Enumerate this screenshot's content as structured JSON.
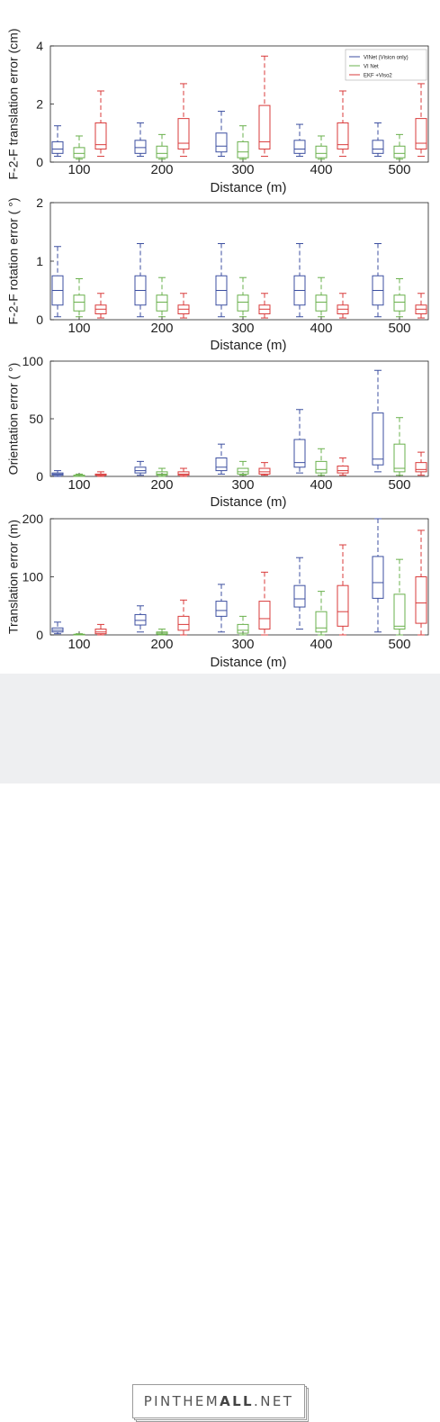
{
  "colors": {
    "vinet": "#3c4fa0",
    "vinet_vi": "#6ab04c",
    "ekf_viso2": "#d93b3b",
    "axis": "#222222",
    "footer_bg": "#eeeff1"
  },
  "legend": {
    "position": "top-right",
    "entries": [
      "VINet (Vision only)",
      "VI Net",
      "EKF +Viso2"
    ]
  },
  "footer": {
    "brand_prefix": "PIN",
    "brand_mid": "THEM",
    "brand_bold": "ALL",
    "brand_suffix": ".NET"
  },
  "chart_data": [
    {
      "type": "box",
      "xlabel": "Distance (m)",
      "ylabel": "F-2-F translation error (cm)",
      "ylim": [
        0,
        4
      ],
      "yticks": [
        "0",
        "2",
        "4"
      ],
      "categories": [
        "100",
        "200",
        "300",
        "400",
        "500"
      ],
      "legend_shown": true,
      "series": [
        {
          "name": "VINet (Vision only)",
          "color_key": "vinet",
          "boxes": [
            {
              "min": 0.2,
              "q1": 0.3,
              "median": 0.45,
              "q3": 0.7,
              "max": 1.25
            },
            {
              "min": 0.2,
              "q1": 0.3,
              "median": 0.5,
              "q3": 0.75,
              "max": 1.35
            },
            {
              "min": 0.2,
              "q1": 0.35,
              "median": 0.55,
              "q3": 1.0,
              "max": 1.75
            },
            {
              "min": 0.2,
              "q1": 0.3,
              "median": 0.45,
              "q3": 0.75,
              "max": 1.3
            },
            {
              "min": 0.2,
              "q1": 0.3,
              "median": 0.45,
              "q3": 0.75,
              "max": 1.35
            }
          ]
        },
        {
          "name": "VI Net",
          "color_key": "vinet_vi",
          "boxes": [
            {
              "min": 0.1,
              "q1": 0.15,
              "median": 0.3,
              "q3": 0.5,
              "max": 0.9
            },
            {
              "min": 0.1,
              "q1": 0.15,
              "median": 0.3,
              "q3": 0.55,
              "max": 0.95
            },
            {
              "min": 0.1,
              "q1": 0.15,
              "median": 0.35,
              "q3": 0.7,
              "max": 1.25
            },
            {
              "min": 0.1,
              "q1": 0.15,
              "median": 0.3,
              "q3": 0.55,
              "max": 0.9
            },
            {
              "min": 0.1,
              "q1": 0.15,
              "median": 0.3,
              "q3": 0.55,
              "max": 0.95
            }
          ]
        },
        {
          "name": "EKF +Viso2",
          "color_key": "ekf_viso2",
          "boxes": [
            {
              "min": 0.2,
              "q1": 0.45,
              "median": 0.6,
              "q3": 1.35,
              "max": 2.45
            },
            {
              "min": 0.2,
              "q1": 0.45,
              "median": 0.65,
              "q3": 1.5,
              "max": 2.7
            },
            {
              "min": 0.2,
              "q1": 0.45,
              "median": 0.7,
              "q3": 1.95,
              "max": 3.65
            },
            {
              "min": 0.2,
              "q1": 0.45,
              "median": 0.6,
              "q3": 1.35,
              "max": 2.45
            },
            {
              "min": 0.2,
              "q1": 0.45,
              "median": 0.65,
              "q3": 1.5,
              "max": 2.7
            }
          ]
        }
      ]
    },
    {
      "type": "box",
      "xlabel": "Distance (m)",
      "ylabel": "F-2-F rotation error ( °)",
      "ylim": [
        0,
        2
      ],
      "yticks": [
        "0",
        "1",
        "2"
      ],
      "categories": [
        "100",
        "200",
        "300",
        "400",
        "500"
      ],
      "legend_shown": false,
      "series": [
        {
          "name": "VINet (Vision only)",
          "color_key": "vinet",
          "boxes": [
            {
              "min": 0.05,
              "q1": 0.25,
              "median": 0.5,
              "q3": 0.75,
              "max": 1.25
            },
            {
              "min": 0.05,
              "q1": 0.25,
              "median": 0.5,
              "q3": 0.75,
              "max": 1.3
            },
            {
              "min": 0.05,
              "q1": 0.25,
              "median": 0.5,
              "q3": 0.75,
              "max": 1.3
            },
            {
              "min": 0.05,
              "q1": 0.25,
              "median": 0.5,
              "q3": 0.75,
              "max": 1.3
            },
            {
              "min": 0.05,
              "q1": 0.25,
              "median": 0.5,
              "q3": 0.75,
              "max": 1.3
            }
          ]
        },
        {
          "name": "VI Net",
          "color_key": "vinet_vi",
          "boxes": [
            {
              "min": 0.05,
              "q1": 0.15,
              "median": 0.3,
              "q3": 0.42,
              "max": 0.7
            },
            {
              "min": 0.05,
              "q1": 0.15,
              "median": 0.3,
              "q3": 0.42,
              "max": 0.72
            },
            {
              "min": 0.05,
              "q1": 0.15,
              "median": 0.3,
              "q3": 0.42,
              "max": 0.72
            },
            {
              "min": 0.05,
              "q1": 0.15,
              "median": 0.3,
              "q3": 0.42,
              "max": 0.72
            },
            {
              "min": 0.05,
              "q1": 0.15,
              "median": 0.3,
              "q3": 0.42,
              "max": 0.7
            }
          ]
        },
        {
          "name": "EKF +Viso2",
          "color_key": "ekf_viso2",
          "boxes": [
            {
              "min": 0.03,
              "q1": 0.1,
              "median": 0.18,
              "q3": 0.25,
              "max": 0.45
            },
            {
              "min": 0.03,
              "q1": 0.1,
              "median": 0.18,
              "q3": 0.25,
              "max": 0.45
            },
            {
              "min": 0.03,
              "q1": 0.1,
              "median": 0.18,
              "q3": 0.25,
              "max": 0.45
            },
            {
              "min": 0.03,
              "q1": 0.1,
              "median": 0.18,
              "q3": 0.25,
              "max": 0.45
            },
            {
              "min": 0.03,
              "q1": 0.1,
              "median": 0.18,
              "q3": 0.25,
              "max": 0.45
            }
          ]
        }
      ]
    },
    {
      "type": "box",
      "xlabel": "Distance (m)",
      "ylabel": "Orientation error ( °)",
      "ylim": [
        0,
        100
      ],
      "yticks": [
        "0",
        "50",
        "100"
      ],
      "categories": [
        "100",
        "200",
        "300",
        "400",
        "500"
      ],
      "legend_shown": false,
      "series": [
        {
          "name": "VINet (Vision only)",
          "color_key": "vinet",
          "boxes": [
            {
              "min": 0,
              "q1": 1,
              "median": 2,
              "q3": 3,
              "max": 5
            },
            {
              "min": 1,
              "q1": 3,
              "median": 5,
              "q3": 8,
              "max": 13
            },
            {
              "min": 2,
              "q1": 5,
              "median": 8,
              "q3": 16,
              "max": 28
            },
            {
              "min": 3,
              "q1": 8,
              "median": 12,
              "q3": 32,
              "max": 58
            },
            {
              "min": 4,
              "q1": 10,
              "median": 15,
              "q3": 55,
              "max": 92
            }
          ]
        },
        {
          "name": "VI Net",
          "color_key": "vinet_vi",
          "boxes": [
            {
              "min": 0,
              "q1": 0,
              "median": 1,
              "q3": 1,
              "max": 2
            },
            {
              "min": 0,
              "q1": 1,
              "median": 2,
              "q3": 4,
              "max": 7
            },
            {
              "min": 1,
              "q1": 2,
              "median": 4,
              "q3": 7,
              "max": 13
            },
            {
              "min": 1,
              "q1": 3,
              "median": 6,
              "q3": 13,
              "max": 24
            },
            {
              "min": 1,
              "q1": 4,
              "median": 7,
              "q3": 28,
              "max": 51
            }
          ]
        },
        {
          "name": "EKF +Viso2",
          "color_key": "ekf_viso2",
          "boxes": [
            {
              "min": 0,
              "q1": 1,
              "median": 1,
              "q3": 2,
              "max": 4
            },
            {
              "min": 0,
              "q1": 1,
              "median": 2,
              "q3": 4,
              "max": 7
            },
            {
              "min": 1,
              "q1": 2,
              "median": 4,
              "q3": 7,
              "max": 12
            },
            {
              "min": 1,
              "q1": 3,
              "median": 5,
              "q3": 9,
              "max": 16
            },
            {
              "min": 1,
              "q1": 4,
              "median": 6,
              "q3": 12,
              "max": 21
            }
          ]
        }
      ]
    },
    {
      "type": "box",
      "xlabel": "Distance (m)",
      "ylabel": "Translation error (m)",
      "ylim": [
        0,
        200
      ],
      "yticks": [
        "0",
        "100",
        "200"
      ],
      "categories": [
        "100",
        "200",
        "300",
        "400",
        "500"
      ],
      "legend_shown": false,
      "series": [
        {
          "name": "VINet (Vision only)",
          "color_key": "vinet",
          "boxes": [
            {
              "min": 2,
              "q1": 5,
              "median": 8,
              "q3": 12,
              "max": 22
            },
            {
              "min": 5,
              "q1": 17,
              "median": 25,
              "q3": 35,
              "max": 50
            },
            {
              "min": 5,
              "q1": 32,
              "median": 42,
              "q3": 58,
              "max": 87
            },
            {
              "min": 10,
              "q1": 48,
              "median": 62,
              "q3": 85,
              "max": 133
            },
            {
              "min": 5,
              "q1": 63,
              "median": 90,
              "q3": 135,
              "max": 200
            }
          ]
        },
        {
          "name": "VI Net",
          "color_key": "vinet_vi",
          "boxes": [
            {
              "min": 0,
              "q1": 0,
              "median": 1,
              "q3": 1,
              "max": 2
            },
            {
              "min": 0,
              "q1": 1,
              "median": 3,
              "q3": 5,
              "max": 10
            },
            {
              "min": 0,
              "q1": 3,
              "median": 8,
              "q3": 18,
              "max": 32
            },
            {
              "min": 0,
              "q1": 5,
              "median": 12,
              "q3": 40,
              "max": 75
            },
            {
              "min": 0,
              "q1": 10,
              "median": 15,
              "q3": 70,
              "max": 130
            }
          ]
        },
        {
          "name": "EKF +Viso2",
          "color_key": "ekf_viso2",
          "boxes": [
            {
              "min": 0,
              "q1": 2,
              "median": 5,
              "q3": 10,
              "max": 18
            },
            {
              "min": 0,
              "q1": 8,
              "median": 18,
              "q3": 32,
              "max": 60
            },
            {
              "min": 0,
              "q1": 10,
              "median": 28,
              "q3": 58,
              "max": 108
            },
            {
              "min": 0,
              "q1": 15,
              "median": 40,
              "q3": 85,
              "max": 155
            },
            {
              "min": 0,
              "q1": 20,
              "median": 55,
              "q3": 100,
              "max": 180
            }
          ]
        }
      ]
    }
  ]
}
